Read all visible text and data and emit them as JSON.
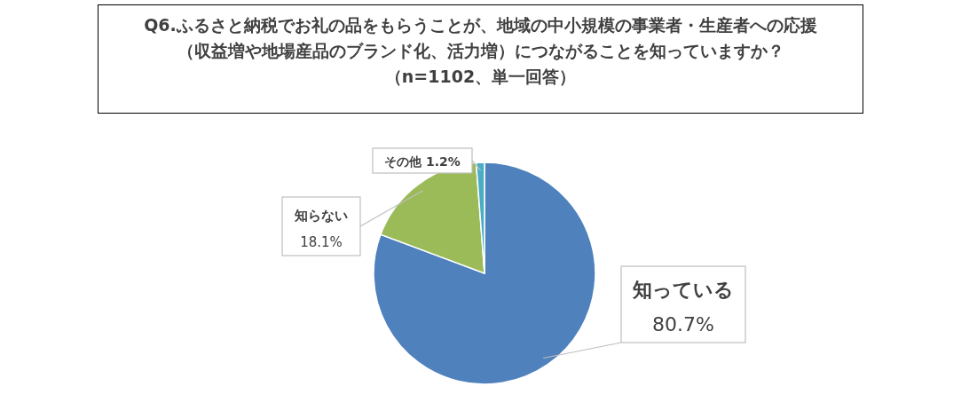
{
  "chart_data": {
    "type": "pie",
    "title": "Q6.ふるさと納税でお礼の品をもらうことが、地域の中小規模の事業者・生産者への応援（収益増や地場産品のブランド化、活力増）につながることを知っていますか？",
    "subtitle": "（n=1102、単一回答）",
    "categories": [
      "知っている",
      "知らない",
      "その他"
    ],
    "values": [
      80.7,
      18.1,
      1.2
    ],
    "colors": [
      "#4f81bd",
      "#9bbb59",
      "#4bacc6"
    ],
    "value_labels": [
      "80.7%",
      "18.1%",
      "1.2%"
    ]
  }
}
